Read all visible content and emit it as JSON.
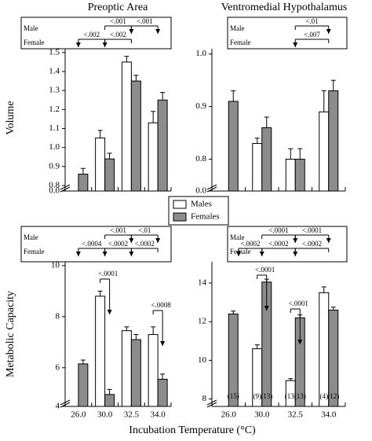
{
  "chart_data": [
    {
      "type": "bar",
      "title": "Preoptic Area",
      "y_label": "Volume",
      "categories": [
        null,
        null,
        null,
        null
      ],
      "series": [
        {
          "name": "Males",
          "color": "#ffffff",
          "values": [
            null,
            1.05,
            1.45,
            1.13
          ],
          "errors": [
            null,
            0.04,
            0.03,
            0.06
          ]
        },
        {
          "name": "Females",
          "color": "#8c8c8c",
          "values": [
            0.86,
            0.94,
            1.35,
            1.25
          ],
          "errors": [
            0.03,
            0.03,
            0.03,
            0.04
          ]
        }
      ],
      "ylim": [
        0.8,
        1.52
      ],
      "yticks": [
        {
          "value": 0,
          "label": "0.0"
        },
        0.8,
        0.9,
        {
          "value": 1,
          "label": "1.0"
        },
        1.1,
        1.2,
        1.3,
        1.4,
        1.5
      ],
      "significance": {
        "row_labels": [
          "Male",
          "Female"
        ],
        "male": [
          "<.001",
          "<.001"
        ],
        "female": [
          "<.002",
          "<.002"
        ]
      }
    },
    {
      "type": "bar",
      "title": "Ventromedial Hypothalamus",
      "categories": [
        null,
        null,
        null,
        null
      ],
      "series": [
        {
          "name": "Males",
          "color": "#ffffff",
          "values": [
            null,
            0.83,
            0.8,
            0.89
          ],
          "errors": [
            null,
            0.01,
            0.02,
            0.04
          ]
        },
        {
          "name": "Females",
          "color": "#8c8c8c",
          "values": [
            0.91,
            0.86,
            0.8,
            0.93
          ],
          "errors": [
            0.02,
            0.02,
            0.02,
            0.02
          ]
        }
      ],
      "ylim": [
        0.75,
        1.01
      ],
      "yticks": [
        {
          "value": 0,
          "label": "0.0"
        },
        0.8,
        0.9,
        {
          "value": 1,
          "label": "1.0"
        }
      ],
      "significance": {
        "row_labels": [
          "Male",
          "Female"
        ],
        "male": [
          "<.01"
        ],
        "female": [
          "<.007"
        ]
      }
    },
    {
      "type": "bar",
      "y_label": "Metabolic Capacity",
      "categories": [
        "26.0",
        "30.0",
        "32.5",
        "34.0"
      ],
      "series": [
        {
          "name": "Males",
          "color": "#ffffff",
          "values": [
            null,
            8.8,
            7.45,
            7.3
          ],
          "errors": [
            null,
            0.2,
            0.15,
            0.3
          ]
        },
        {
          "name": "Females",
          "color": "#8c8c8c",
          "values": [
            6.15,
            4.95,
            7.1,
            5.55
          ],
          "errors": [
            0.15,
            0.2,
            0.2,
            0.2
          ]
        }
      ],
      "ylim": [
        4.7,
        10.15
      ],
      "yticks": [
        4,
        6,
        8,
        10
      ],
      "significance": {
        "row_labels": [
          "Male",
          "Female"
        ],
        "male": [
          "<.001",
          "<.01"
        ],
        "female": [
          "<.0004",
          "<.0002",
          "<.0002"
        ]
      },
      "annotations": [
        "<.0001",
        "<.0008"
      ]
    },
    {
      "type": "bar",
      "categories": [
        "26.0",
        "30.0",
        "32.5",
        "34.0"
      ],
      "series": [
        {
          "name": "Males",
          "color": "#ffffff",
          "values": [
            null,
            10.6,
            8.95,
            13.5
          ],
          "errors": [
            null,
            0.2,
            0.1,
            0.3
          ],
          "n_labels": [
            null,
            "(9)",
            "(13)",
            "(4)"
          ]
        },
        {
          "name": "Females",
          "color": "#8c8c8c",
          "values": [
            12.4,
            14.05,
            12.2,
            12.6
          ],
          "errors": [
            0.15,
            0.15,
            0.15,
            0.15
          ],
          "n_labels": [
            "(15)",
            "(13)",
            "(13)",
            "(12)"
          ]
        }
      ],
      "ylim": [
        7.9,
        15.1
      ],
      "yticks": [
        8,
        10,
        12,
        14
      ],
      "significance": {
        "row_labels": [
          "Male",
          "Female"
        ],
        "male": [
          "<.0001",
          "<.0001"
        ],
        "female": [
          "<.0002",
          "<.0002",
          "<.0002"
        ]
      },
      "annotations": [
        "<.0001",
        "<.0001"
      ]
    }
  ],
  "x_label": "Incubation Temperature (°C)"
}
